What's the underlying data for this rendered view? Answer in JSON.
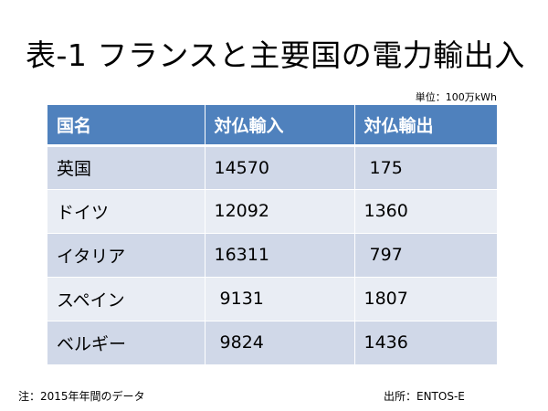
{
  "slide": {
    "title": "表-1 フランスと主要国の電力輸出入",
    "unit_note": "単位：100万kWh",
    "footnote": "注：2015年年間のデータ",
    "source": "出所：ENTOS-E"
  },
  "table": {
    "headers": [
      "国名",
      "対仏輸入",
      "対仏輸出"
    ],
    "rows": [
      {
        "country": "英国",
        "import": "14570",
        "export": " 175"
      },
      {
        "country": "ドイツ",
        "import": "12092",
        "export": "1360"
      },
      {
        "country": "イタリア",
        "import": "16311",
        "export": " 797"
      },
      {
        "country": "スペイン",
        "import": " 9131",
        "export": "1807"
      },
      {
        "country": "ベルギー",
        "import": " 9824",
        "export": "1436"
      }
    ]
  },
  "colors": {
    "header_bg": "#4f81bd",
    "row_odd_bg": "#d0d8e8",
    "row_even_bg": "#e9edf4"
  }
}
